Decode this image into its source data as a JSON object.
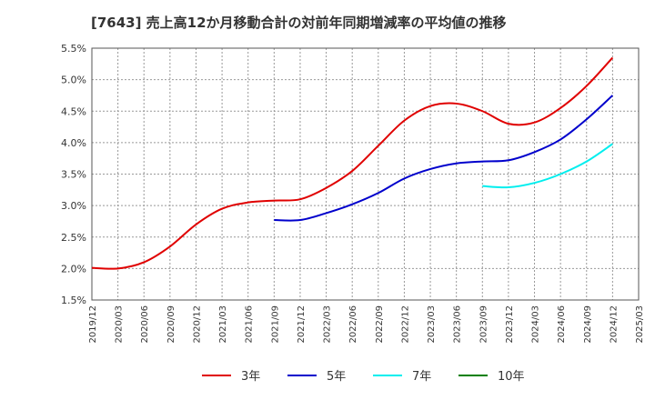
{
  "chart_data": {
    "type": "line",
    "title": "[7643]  売上高12か月移動合計の対前年同期増減率の平均値の推移",
    "xlabel": "",
    "ylabel": "",
    "ylim": [
      1.5,
      5.5
    ],
    "y_ticks": [
      "1.5%",
      "2.0%",
      "2.5%",
      "3.0%",
      "3.5%",
      "4.0%",
      "4.5%",
      "5.0%",
      "5.5%"
    ],
    "x_ticks": [
      "2019/12",
      "2020/03",
      "2020/06",
      "2020/09",
      "2020/12",
      "2021/03",
      "2021/06",
      "2021/09",
      "2021/12",
      "2022/03",
      "2022/06",
      "2022/09",
      "2022/12",
      "2023/03",
      "2023/06",
      "2023/09",
      "2023/12",
      "2024/03",
      "2024/06",
      "2024/09",
      "2024/12",
      "2025/03"
    ],
    "grid": true,
    "legend_position": "bottom",
    "series": [
      {
        "name": "3年",
        "color": "#e00000",
        "x": [
          "2019/12",
          "2020/03",
          "2020/06",
          "2020/09",
          "2020/12",
          "2021/03",
          "2021/06",
          "2021/09",
          "2021/12",
          "2022/03",
          "2022/06",
          "2022/09",
          "2022/12",
          "2023/03",
          "2023/06",
          "2023/09",
          "2023/12",
          "2024/03",
          "2024/06",
          "2024/09",
          "2024/12"
        ],
        "values": [
          2.01,
          2.0,
          2.1,
          2.35,
          2.7,
          2.95,
          3.05,
          3.08,
          3.1,
          3.28,
          3.55,
          3.95,
          4.35,
          4.58,
          4.62,
          4.5,
          4.3,
          4.32,
          4.55,
          4.9,
          5.35
        ]
      },
      {
        "name": "5年",
        "color": "#0000cc",
        "x": [
          "2021/09",
          "2021/12",
          "2022/03",
          "2022/06",
          "2022/09",
          "2022/12",
          "2023/03",
          "2023/06",
          "2023/09",
          "2023/12",
          "2024/03",
          "2024/06",
          "2024/09",
          "2024/12"
        ],
        "values": [
          2.77,
          2.77,
          2.88,
          3.02,
          3.2,
          3.43,
          3.58,
          3.67,
          3.7,
          3.72,
          3.85,
          4.05,
          4.37,
          4.75
        ]
      },
      {
        "name": "7年",
        "color": "#00eeee",
        "x": [
          "2023/09",
          "2023/12",
          "2024/03",
          "2024/06",
          "2024/09",
          "2024/12"
        ],
        "values": [
          3.31,
          3.29,
          3.36,
          3.5,
          3.7,
          3.98
        ]
      },
      {
        "name": "10年",
        "color": "#008000",
        "x": [],
        "values": []
      }
    ]
  }
}
